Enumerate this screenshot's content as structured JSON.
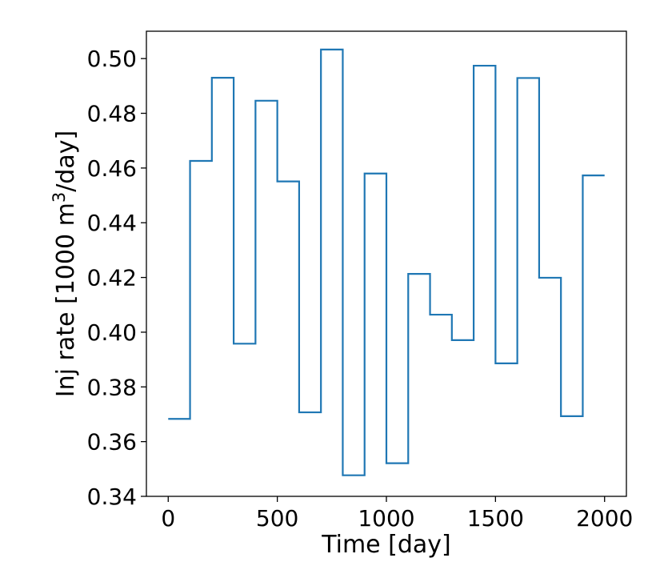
{
  "chart_data": {
    "type": "line",
    "step": "post",
    "title": "",
    "xlabel": "Time [day]",
    "ylabel": "Inj rate [1000 m³/day]",
    "xlim": [
      -100,
      2100
    ],
    "ylim": [
      0.34,
      0.51
    ],
    "xticks": [
      0,
      500,
      1000,
      1500,
      2000
    ],
    "xtick_labels": [
      "0",
      "500",
      "1000",
      "1500",
      "2000"
    ],
    "yticks": [
      0.34,
      0.36,
      0.38,
      0.4,
      0.42,
      0.44,
      0.46,
      0.48,
      0.5
    ],
    "ytick_labels": [
      "0.34",
      "0.36",
      "0.38",
      "0.40",
      "0.42",
      "0.44",
      "0.46",
      "0.48",
      "0.50"
    ],
    "grid": false,
    "line_color": "#1f77b4",
    "series": [
      {
        "x": [
          0,
          100,
          200,
          300,
          400,
          500,
          600,
          700,
          800,
          900,
          1000,
          1100,
          1200,
          1300,
          1400,
          1500,
          1600,
          1700,
          1800,
          1900,
          2000
        ],
        "values": [
          0.3683,
          0.4626,
          0.493,
          0.3958,
          0.4846,
          0.4551,
          0.3707,
          0.5033,
          0.3477,
          0.458,
          0.3521,
          0.4213,
          0.4064,
          0.3971,
          0.4974,
          0.3886,
          0.4929,
          0.4199,
          0.3693,
          0.4573,
          0.4573
        ]
      }
    ]
  }
}
